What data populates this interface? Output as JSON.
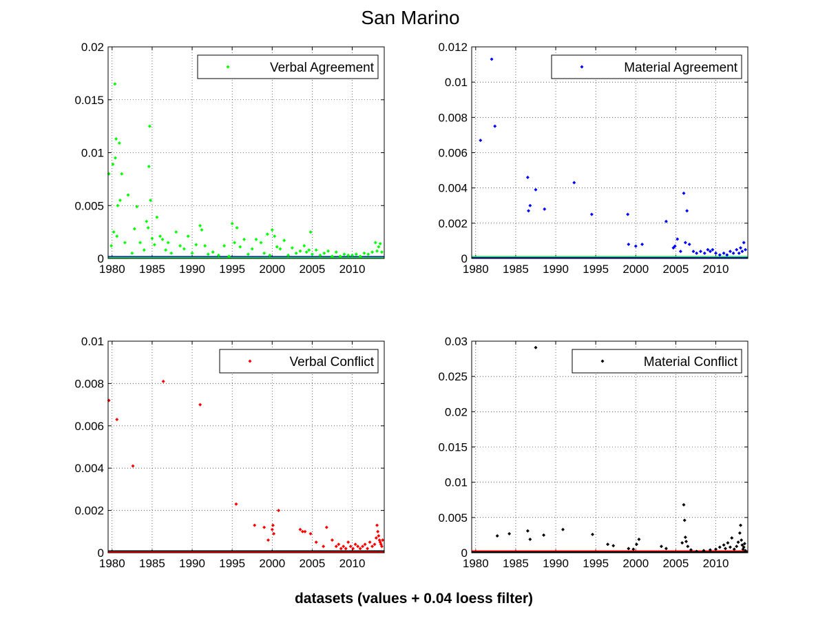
{
  "figure": {
    "title": "San Marino",
    "xlabel": "datasets (values + 0.04 loess filter)"
  },
  "chart_data": [
    {
      "type": "scatter",
      "id": "va",
      "legend": "Verbal Agreement",
      "legend_placement": "top-right",
      "grid": true,
      "xlim": [
        1979.5,
        2014
      ],
      "ylim": [
        0,
        0.02
      ],
      "xticks": [
        "1980",
        "1985",
        "1990",
        "1995",
        "2000",
        "2005",
        "2010"
      ],
      "yticks": [
        "0",
        "0.005",
        "0.01",
        "0.015",
        "0.02"
      ],
      "colors": {
        "points": "#00ff00",
        "base": "#0000ff"
      },
      "x": [
        1979.6,
        1979.9,
        1980.1,
        1980.2,
        1980.35,
        1980.4,
        1980.5,
        1980.6,
        1980.7,
        1980.9,
        1981.0,
        1981.2,
        1981.6,
        1982.0,
        1982.5,
        1982.8,
        1983.1,
        1983.5,
        1984.0,
        1984.3,
        1984.5,
        1984.6,
        1984.7,
        1984.8,
        1985.0,
        1985.3,
        1985.6,
        1986.0,
        1986.3,
        1986.7,
        1987.0,
        1987.4,
        1988.0,
        1988.5,
        1989.0,
        1989.5,
        1990.0,
        1990.5,
        1991.0,
        1991.2,
        1991.6,
        1992.0,
        1992.6,
        1993.3,
        1994.0,
        1994.6,
        1995.0,
        1995.3,
        1995.6,
        1996.0,
        1996.5,
        1997.0,
        1997.5,
        1998.0,
        1998.6,
        1999.0,
        1999.4,
        1999.7,
        2000.0,
        2000.3,
        2000.6,
        2001.0,
        2001.5,
        2002.0,
        2002.5,
        2003.0,
        2003.5,
        2004.0,
        2004.3,
        2004.6,
        2004.8,
        2005.0,
        2005.5,
        2006.0,
        2006.5,
        2007.0,
        2007.5,
        2008.0,
        2008.5,
        2009.0,
        2009.5,
        2010.0,
        2010.5,
        2011.0,
        2011.5,
        2012.0,
        2012.5,
        2012.9,
        2013.1,
        2013.3,
        2013.5,
        2013.7
      ],
      "y": [
        0.008,
        0.0012,
        0.0089,
        0.0025,
        0.0165,
        0.0095,
        0.0113,
        0.0021,
        0.005,
        0.0109,
        0.0055,
        0.008,
        0.0015,
        0.006,
        0.0005,
        0.0028,
        0.0049,
        0.0015,
        0.0008,
        0.0035,
        0.0029,
        0.0087,
        0.0125,
        0.0055,
        0.0019,
        0.0013,
        0.0039,
        0.0021,
        0.0018,
        0.0008,
        0.0015,
        0.0005,
        0.0025,
        0.0012,
        0.0009,
        0.0021,
        0.0005,
        0.0013,
        0.0031,
        0.0027,
        0.0012,
        0.0004,
        0.0006,
        0.0003,
        0.0012,
        0.0002,
        0.0033,
        0.0015,
        0.0029,
        0.0011,
        0.0018,
        0.0004,
        0.0009,
        0.0018,
        0.0015,
        0.0005,
        0.0023,
        0.0003,
        0.0027,
        0.0021,
        0.0011,
        0.0009,
        0.0017,
        0.0003,
        0.001,
        0.0005,
        0.0007,
        0.0012,
        0.0006,
        0.0008,
        0.0025,
        0.0004,
        0.0008,
        0.0003,
        0.0005,
        0.0007,
        0.0002,
        0.0006,
        0.0002,
        0.0004,
        0.0003,
        0.0003,
        0.0004,
        0.0002,
        0.0005,
        0.0004,
        0.0006,
        0.0015,
        0.0007,
        0.0011,
        0.0014,
        0.0006
      ]
    },
    {
      "type": "scatter",
      "id": "ma",
      "legend": "Material Agreement",
      "legend_placement": "top-right",
      "grid": true,
      "xlim": [
        1979.5,
        2014
      ],
      "ylim": [
        0,
        0.012
      ],
      "xticks": [
        "1980",
        "1985",
        "1990",
        "1995",
        "2000",
        "2005",
        "2010"
      ],
      "yticks": [
        "0",
        "0.002",
        "0.004",
        "0.006",
        "0.008",
        "0.01",
        "0.012"
      ],
      "colors": {
        "points": "#0000ff",
        "base": "#00ff00"
      },
      "x": [
        1980.6,
        1982.0,
        1982.4,
        1986.5,
        1986.6,
        1986.8,
        1987.5,
        1988.6,
        1992.3,
        1994.5,
        1999.0,
        1999.1,
        2000.0,
        2000.8,
        2003.8,
        2004.7,
        2004.9,
        2005.2,
        2005.6,
        2006.0,
        2006.2,
        2006.4,
        2006.7,
        2007.2,
        2007.6,
        2008.1,
        2008.6,
        2009.0,
        2009.3,
        2009.6,
        2010.0,
        2010.5,
        2011.0,
        2011.4,
        2011.8,
        2012.2,
        2012.6,
        2012.9,
        2013.1,
        2013.3,
        2013.5,
        2013.7
      ],
      "y": [
        0.0067,
        0.0113,
        0.0075,
        0.0046,
        0.0027,
        0.003,
        0.0039,
        0.0028,
        0.0043,
        0.0025,
        0.0025,
        0.0008,
        0.0007,
        0.0008,
        0.0021,
        0.0006,
        0.0007,
        0.0011,
        0.0004,
        0.0037,
        0.0009,
        0.0027,
        0.0008,
        0.0004,
        0.0003,
        0.0004,
        0.0003,
        0.0005,
        0.0004,
        0.0005,
        0.0003,
        0.0002,
        0.0003,
        0.0002,
        0.0004,
        0.0003,
        0.0005,
        0.0003,
        0.0006,
        0.0004,
        0.0009,
        0.0005
      ]
    },
    {
      "type": "scatter",
      "id": "vc",
      "legend": "Verbal Conflict",
      "legend_placement": "top-right",
      "grid": true,
      "xlim": [
        1979.5,
        2014
      ],
      "ylim": [
        0,
        0.01
      ],
      "xticks": [
        "1980",
        "1985",
        "1990",
        "1995",
        "2000",
        "2005",
        "2010"
      ],
      "yticks": [
        "0",
        "0.002",
        "0.004",
        "0.006",
        "0.008",
        "0.01"
      ],
      "colors": {
        "points": "#ff0000",
        "base": "#000000"
      },
      "x": [
        1979.6,
        1980.6,
        1982.6,
        1986.4,
        1991.0,
        1995.5,
        1997.8,
        1999.0,
        1999.5,
        2000.0,
        2000.1,
        2000.2,
        2000.8,
        2003.5,
        2003.8,
        2004.1,
        2004.8,
        2005.5,
        2006.4,
        2006.8,
        2007.5,
        2008.0,
        2008.3,
        2008.6,
        2008.9,
        2009.2,
        2009.5,
        2009.8,
        2010.1,
        2010.4,
        2010.7,
        2011.0,
        2011.3,
        2011.6,
        2011.9,
        2012.2,
        2012.5,
        2012.8,
        2013.0,
        2013.1,
        2013.2,
        2013.3,
        2013.4,
        2013.5,
        2013.6,
        2013.7,
        2013.8
      ],
      "y": [
        0.0072,
        0.0063,
        0.0041,
        0.0081,
        0.007,
        0.0023,
        0.0013,
        0.0012,
        0.0006,
        0.0011,
        0.0013,
        0.0009,
        0.002,
        0.0011,
        0.001,
        0.001,
        0.0009,
        0.0005,
        0.0003,
        0.0012,
        0.0006,
        0.0003,
        0.0004,
        0.0002,
        0.0003,
        0.0002,
        0.0005,
        0.0003,
        0.0002,
        0.0004,
        0.0003,
        0.0002,
        0.0003,
        0.0004,
        0.0002,
        0.0005,
        0.0003,
        0.0004,
        0.0007,
        0.0013,
        0.001,
        0.0008,
        0.0006,
        0.0005,
        0.0004,
        0.0003,
        0.0006
      ]
    },
    {
      "type": "scatter",
      "id": "mc",
      "legend": "Material Conflict",
      "legend_placement": "top-right",
      "grid": true,
      "xlim": [
        1979.5,
        2014
      ],
      "ylim": [
        0,
        0.03
      ],
      "xticks": [
        "1980",
        "1985",
        "1990",
        "1995",
        "2000",
        "2005",
        "2010"
      ],
      "yticks": [
        "0",
        "0.005",
        "0.01",
        "0.015",
        "0.02",
        "0.025",
        "0.03"
      ],
      "colors": {
        "points": "#000000",
        "base": "#ff0000"
      },
      "x": [
        1987.5,
        1982.7,
        1984.2,
        1986.5,
        1986.8,
        1988.5,
        1990.9,
        1994.6,
        1996.5,
        1997.2,
        1999.1,
        1999.7,
        2000.1,
        2000.4,
        2003.2,
        2003.8,
        2005.8,
        2006.0,
        2006.1,
        2006.2,
        2006.3,
        2006.5,
        2006.9,
        2007.6,
        2008.5,
        2009.3,
        2010.0,
        2010.5,
        2011.0,
        2011.2,
        2011.5,
        2011.8,
        2012.0,
        2012.3,
        2012.6,
        2012.8,
        2013.0,
        2013.1,
        2013.2,
        2013.3,
        2013.4,
        2013.5,
        2013.6,
        2013.7
      ],
      "y": [
        0.0291,
        0.0024,
        0.0027,
        0.0031,
        0.0019,
        0.0025,
        0.0033,
        0.0026,
        0.0012,
        0.001,
        0.0006,
        0.0005,
        0.0012,
        0.0019,
        0.0009,
        0.0006,
        0.0014,
        0.0068,
        0.0046,
        0.0022,
        0.0016,
        0.0009,
        0.0004,
        0.0002,
        0.0003,
        0.0004,
        0.0005,
        0.0008,
        0.0011,
        0.0006,
        0.0014,
        0.0008,
        0.0021,
        0.0005,
        0.0009,
        0.0015,
        0.0028,
        0.0039,
        0.0018,
        0.0011,
        0.0005,
        0.0008,
        0.0013,
        0.0003
      ]
    }
  ]
}
